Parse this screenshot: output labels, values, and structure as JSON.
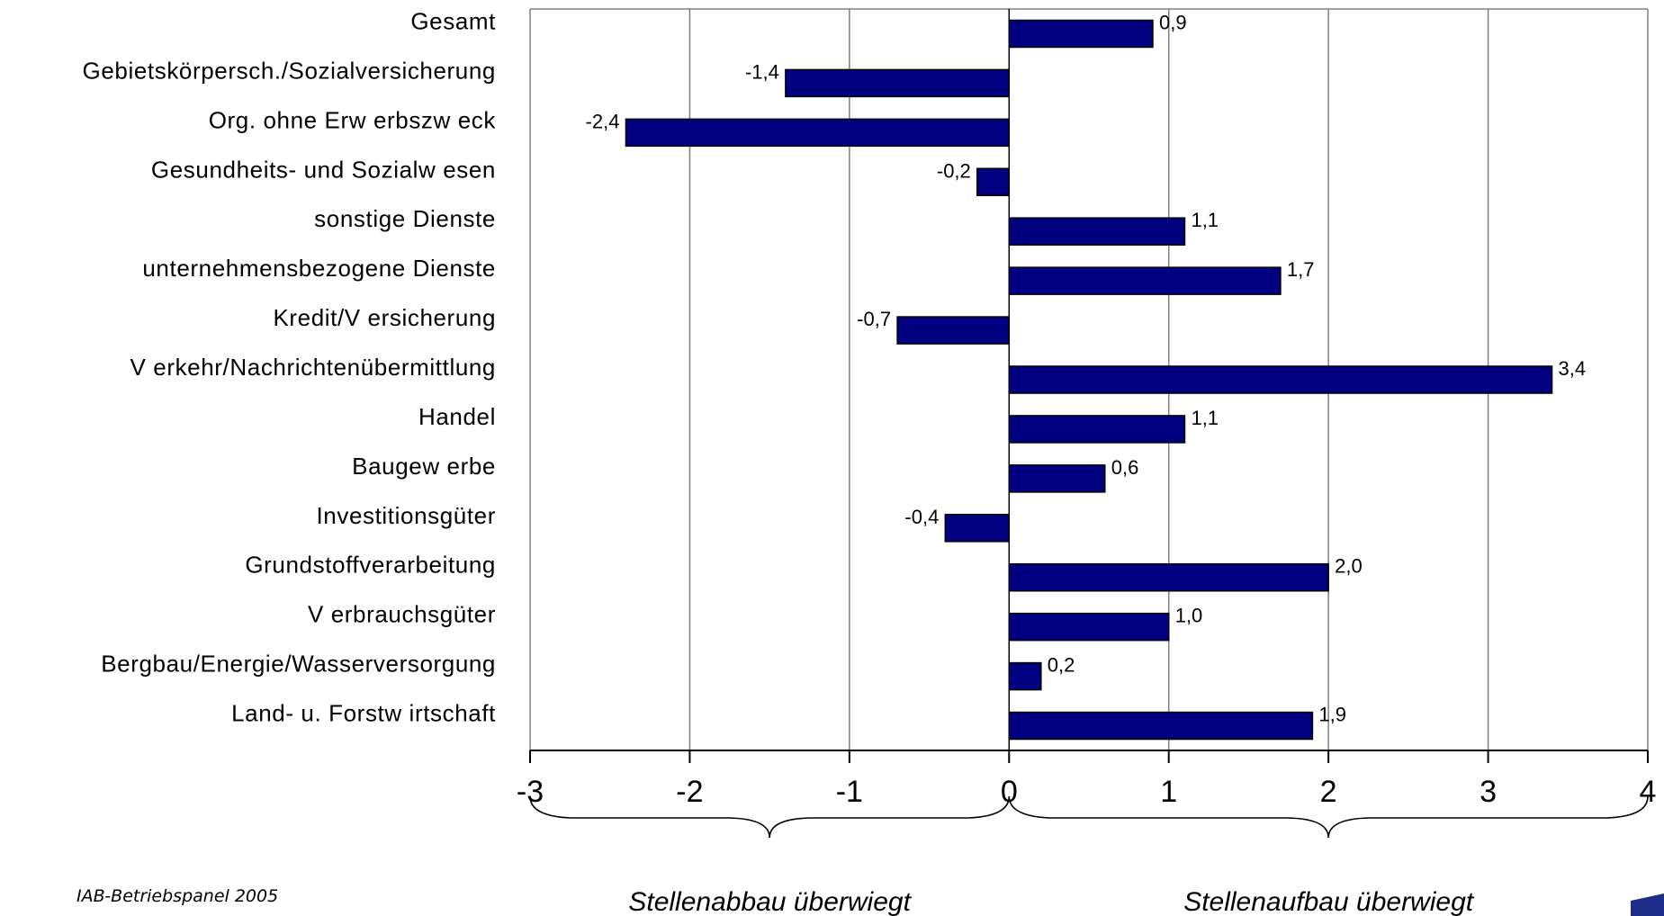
{
  "chart_data": {
    "type": "bar",
    "orientation": "horizontal",
    "categories": [
      "Gesamt",
      "Gebietskörpersch./Sozialversicherung",
      "Org. ohne Erw erbszw eck",
      "Gesundheits- und Sozialw esen",
      "sonstige Dienste",
      "unternehmensbezogene Dienste",
      "Kredit/V ersicherung",
      "V erkehr/Nachrichtenübermittlung",
      "Handel",
      "Baugew erbe",
      "Investitionsgüter",
      "Grundstoffverarbeitung",
      "V erbrauchsgüter",
      "Bergbau/Energie/Wasserversorgung",
      "Land- u. Forstw irtschaft"
    ],
    "values": [
      0.9,
      -1.4,
      -2.4,
      -0.2,
      1.1,
      1.7,
      -0.7,
      3.4,
      1.1,
      0.6,
      -0.4,
      2.0,
      1.0,
      0.2,
      1.9
    ],
    "value_labels": [
      "0,9",
      "-1,4",
      "-2,4",
      "-0,2",
      "1,1",
      "1,7",
      "-0,7",
      "3,4",
      "1,1",
      "0,6",
      "-0,4",
      "2,0",
      "1,0",
      "0,2",
      "1,9"
    ],
    "xlim": [
      -3,
      4
    ],
    "xticks": [
      "-3",
      "-2",
      "-1",
      "0",
      "1",
      "2",
      "3",
      "4"
    ],
    "grid": "vertical",
    "bar_color": "#000080",
    "annotations": [
      {
        "text": "Stellenabbau überwiegt",
        "range": [
          -3,
          0
        ]
      },
      {
        "text": "Stellenaufbau überwiegt",
        "range": [
          0,
          4
        ]
      }
    ]
  },
  "source": "IAB-Betriebspanel 2005",
  "colors": {
    "bar": "#000080",
    "grid": "#808080",
    "corner": "#1f2d8a"
  }
}
